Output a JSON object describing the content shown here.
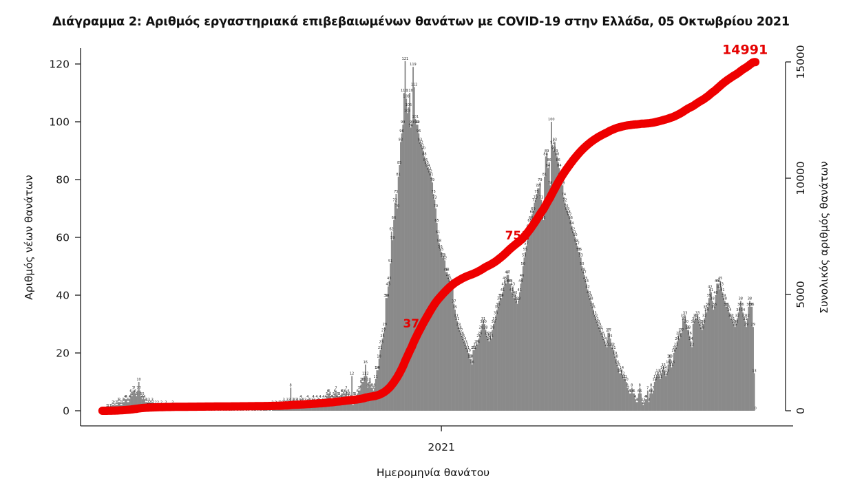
{
  "chart_data": {
    "type": "bar+line",
    "title": "Διάγραμμα 2: Αριθμός εργαστηριακά επιβεβαιωμένων θανάτων με COVID-19 στην Ελλάδα, 05 Οκτωβρίου 2021",
    "xlabel": "Ημερομηνία θανάτου",
    "ylabel": "Αριθμός νέων θανάτων",
    "ylabel2": "Συνολικός αριθμός θανάτων",
    "ylim": [
      0,
      120
    ],
    "ylim2": [
      0,
      15000
    ],
    "yticks": [
      0,
      20,
      40,
      60,
      80,
      100,
      120
    ],
    "yticks2": [
      0,
      5000,
      10000,
      15000
    ],
    "xticks": [
      {
        "label": "2021",
        "index": 299
      }
    ],
    "grid": false,
    "legend": "none",
    "bar_color": "#8a8a8a",
    "bar_label_color": "#262626",
    "line_color": "#ee0000",
    "annotation_color": "#e50000",
    "annotations": [
      {
        "text": "375",
        "position": "on cumulative line at 25% of total"
      },
      {
        "text": "751",
        "position": "on cumulative line at 50% of total"
      },
      {
        "text": "14991",
        "position": "end of cumulative line, top right"
      }
    ],
    "series": [
      {
        "name": "daily_deaths",
        "type": "bar",
        "values": [
          0,
          0,
          0,
          0,
          1,
          1,
          0,
          1,
          1,
          2,
          2,
          1,
          2,
          2,
          3,
          3,
          2,
          2,
          3,
          3,
          4,
          4,
          3,
          3,
          4,
          6,
          5,
          7,
          7,
          6,
          5,
          7,
          10,
          7,
          5,
          4,
          5,
          4,
          3,
          3,
          2,
          3,
          2,
          2,
          3,
          2,
          1,
          2,
          1,
          2,
          1,
          1,
          2,
          1,
          1,
          1,
          2,
          0,
          1,
          1,
          0,
          1,
          2,
          0,
          1,
          0,
          1,
          1,
          0,
          1,
          0,
          1,
          0,
          0,
          1,
          0,
          1,
          0,
          0,
          1,
          0,
          1,
          0,
          0,
          1,
          0,
          1,
          0,
          0,
          1,
          0,
          1,
          0,
          0,
          1,
          0,
          1,
          0,
          0,
          1,
          0,
          0,
          1,
          0,
          1,
          0,
          0,
          1,
          0,
          1,
          0,
          0,
          1,
          0,
          1,
          0,
          1,
          0,
          0,
          1,
          0,
          0,
          1,
          0,
          1,
          0,
          0,
          1,
          0,
          1,
          0,
          0,
          1,
          0,
          1,
          1,
          0,
          1,
          0,
          1,
          1,
          0,
          1,
          1,
          1,
          1,
          0,
          1,
          1,
          0,
          2,
          1,
          1,
          2,
          1,
          1,
          2,
          2,
          1,
          2,
          3,
          2,
          2,
          3,
          2,
          3,
          8,
          2,
          3,
          3,
          2,
          3,
          3,
          2,
          3,
          4,
          3,
          3,
          2,
          3,
          2,
          4,
          3,
          3,
          2,
          3,
          4,
          3,
          2,
          4,
          3,
          3,
          4,
          2,
          3,
          4,
          3,
          4,
          5,
          6,
          6,
          5,
          4,
          4,
          5,
          6,
          7,
          4,
          5,
          5,
          4,
          6,
          6,
          5,
          6,
          7,
          5,
          6,
          5,
          4,
          12,
          2,
          5,
          5,
          4,
          6,
          7,
          7,
          9,
          10,
          10,
          12,
          16,
          12,
          8,
          10,
          9,
          8,
          8,
          7,
          8,
          11,
          14,
          14,
          18,
          21,
          23,
          25,
          27,
          29,
          39,
          39,
          43,
          45,
          51,
          62,
          59,
          66,
          72,
          75,
          70,
          81,
          85,
          93,
          96,
          99,
          110,
          121,
          108,
          103,
          105,
          110,
          98,
          99,
          119,
          112,
          101,
          99,
          99,
          96,
          93,
          92,
          91,
          90,
          88,
          86,
          85,
          84,
          83,
          82,
          81,
          79,
          75,
          73,
          70,
          65,
          61,
          58,
          56,
          55,
          53,
          53,
          52,
          48,
          48,
          46,
          45,
          44,
          42,
          42,
          37,
          35,
          32,
          31,
          29,
          28,
          27,
          26,
          25,
          24,
          23,
          22,
          21,
          20,
          18,
          18,
          16,
          21,
          21,
          22,
          23,
          23,
          25,
          26,
          28,
          30,
          31,
          30,
          28,
          26,
          25,
          24,
          26,
          25,
          28,
          30,
          31,
          33,
          35,
          36,
          38,
          39,
          39,
          41,
          43,
          45,
          44,
          47,
          47,
          44,
          44,
          41,
          43,
          39,
          40,
          38,
          37,
          38,
          41,
          44,
          46,
          50,
          53,
          55,
          57,
          60,
          63,
          65,
          66,
          68,
          69,
          72,
          73,
          75,
          77,
          77,
          79,
          73,
          69,
          66,
          81,
          88,
          89,
          84,
          86,
          78,
          100,
          92,
          90,
          93,
          89,
          88,
          86,
          84,
          81,
          79,
          78,
          74,
          72,
          70,
          69,
          68,
          67,
          66,
          64,
          62,
          61,
          60,
          58,
          57,
          55,
          55,
          53,
          50,
          48,
          47,
          45,
          44,
          42,
          40,
          39,
          38,
          36,
          35,
          33,
          32,
          31,
          30,
          29,
          28,
          27,
          26,
          25,
          24,
          23,
          22,
          27,
          27,
          25,
          22,
          22,
          21,
          19,
          18,
          16,
          15,
          13,
          13,
          14,
          12,
          11,
          11,
          10,
          8,
          7,
          6,
          6,
          8,
          6,
          6,
          4,
          3,
          3,
          6,
          8,
          6,
          3,
          2,
          3,
          4,
          4,
          7,
          3,
          6,
          8,
          6,
          7,
          10,
          11,
          12,
          13,
          12,
          11,
          13,
          14,
          15,
          14,
          12,
          13,
          16,
          18,
          18,
          15,
          16,
          20,
          21,
          22,
          24,
          26,
          25,
          27,
          27,
          32,
          31,
          33,
          30,
          28,
          28,
          26,
          24,
          22,
          30,
          31,
          32,
          32,
          33,
          31,
          30,
          29,
          28,
          30,
          32,
          35,
          34,
          36,
          39,
          42,
          41,
          38,
          35,
          36,
          40,
          44,
          44,
          42,
          45,
          43,
          41,
          39,
          38,
          36,
          36,
          35,
          34,
          32,
          32,
          31,
          30,
          29,
          30,
          32,
          34,
          36,
          38,
          36,
          34,
          32,
          31,
          29,
          32,
          36,
          38,
          36,
          36,
          29,
          13,
          0
        ]
      },
      {
        "name": "cumulative_deaths",
        "type": "line",
        "definition": "cumulative sum of daily_deaths",
        "final_value": 14991
      }
    ]
  }
}
